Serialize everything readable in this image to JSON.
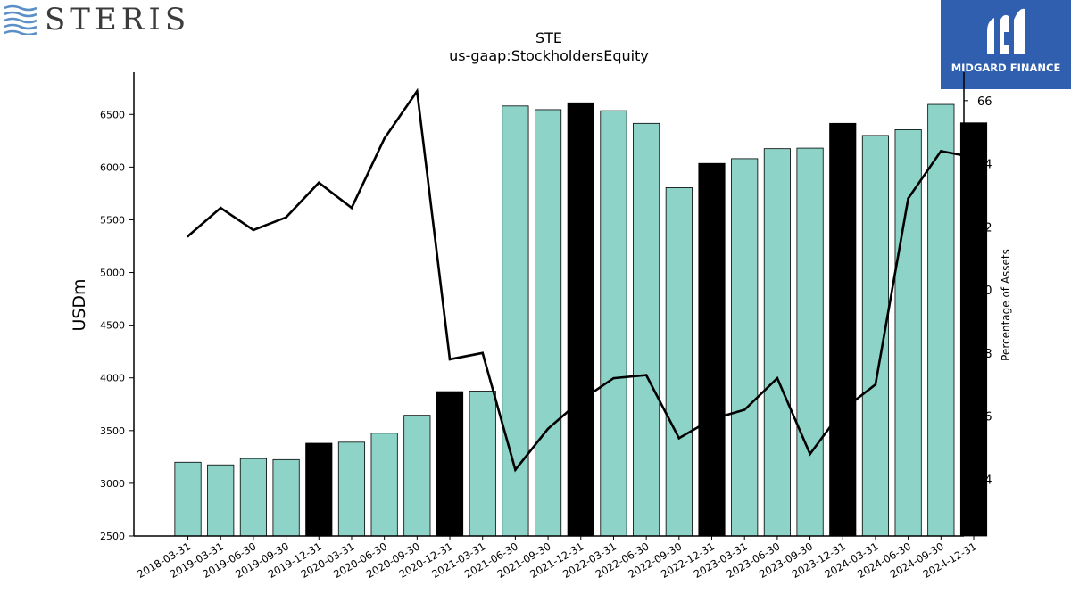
{
  "logos": {
    "left": {
      "text": "STERIS",
      "icon": "steris-waves-icon",
      "color": "#5b8fc7"
    },
    "right": {
      "text": "MIDGARD FINANCE",
      "icon": "midgard-m-icon",
      "background": "#2f5fae"
    }
  },
  "chart_data": {
    "type": "bar",
    "title": "STE",
    "subtitle": "us-gaap:StockholdersEquity",
    "ylabel": "USDm",
    "y2label": "Percentage of Assets",
    "ylim": [
      2500,
      6900
    ],
    "y2lim": [
      52.2,
      66.9
    ],
    "yticks": [
      2500,
      3000,
      3500,
      4000,
      4500,
      5000,
      5500,
      6000,
      6500
    ],
    "y2ticks": [
      54,
      56,
      58,
      60,
      62,
      64,
      66
    ],
    "categories": [
      "2018-03-31",
      "2019-03-31",
      "2019-06-30",
      "2019-09-30",
      "2019-12-31",
      "2020-03-31",
      "2020-06-30",
      "2020-09-30",
      "2020-12-31",
      "2021-03-31",
      "2021-06-30",
      "2021-09-30",
      "2021-12-31",
      "2022-03-31",
      "2022-06-30",
      "2022-09-30",
      "2022-12-31",
      "2023-03-31",
      "2023-06-30",
      "2023-09-30",
      "2023-12-31",
      "2024-03-31",
      "2024-06-30",
      "2024-09-30",
      "2024-12-31"
    ],
    "series": [
      {
        "type": "bar",
        "values": [
          3200,
          3175,
          3235,
          3225,
          3380,
          3390,
          3475,
          3645,
          3870,
          3875,
          6580,
          6545,
          6610,
          6535,
          6415,
          5805,
          6035,
          6080,
          6175,
          6180,
          6415,
          6300,
          6355,
          6595,
          6420
        ],
        "highlight": [
          false,
          false,
          false,
          false,
          true,
          false,
          false,
          false,
          true,
          false,
          false,
          false,
          true,
          false,
          false,
          false,
          true,
          false,
          false,
          false,
          true,
          false,
          false,
          false,
          true
        ]
      },
      {
        "type": "line",
        "axis": "y2",
        "values": [
          61.7,
          62.6,
          61.9,
          62.3,
          63.4,
          62.6,
          64.8,
          66.3,
          57.8,
          58.0,
          54.3,
          55.6,
          56.5,
          57.2,
          57.3,
          55.3,
          55.9,
          56.2,
          57.2,
          54.8,
          56.2,
          57.0,
          62.9,
          64.4,
          64.2
        ]
      }
    ],
    "colors": {
      "bar": "#8dd3c7",
      "bar_highlight": "#000000",
      "line": "#000000"
    },
    "grid": false
  }
}
